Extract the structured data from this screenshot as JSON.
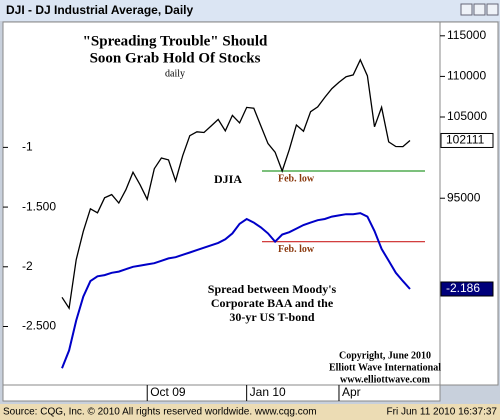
{
  "chart_data": {
    "type": "line",
    "window_title": "DJI - DJ Industrial Average, Daily",
    "categories": [
      null,
      null,
      null,
      null,
      null,
      null,
      null,
      null,
      null,
      null,
      null,
      null,
      "Oct 09",
      null,
      null,
      null,
      null,
      null,
      null,
      null,
      null,
      null,
      null,
      null,
      null,
      null,
      "Jan 10",
      null,
      null,
      null,
      null,
      null,
      null,
      null,
      null,
      null,
      null,
      null,
      null,
      "Apr",
      null,
      null,
      null,
      null,
      null,
      null,
      null,
      null,
      null,
      null
    ],
    "series": [
      {
        "name": "DJIA",
        "color": "#000000",
        "axis": "y",
        "values": [
          82800,
          81460,
          87430,
          90930,
          93700,
          93210,
          95050,
          95440,
          94410,
          96050,
          98200,
          96650,
          94870,
          98640,
          99950,
          99720,
          97130,
          100230,
          102700,
          103180,
          103090,
          103890,
          104710,
          103290,
          105200,
          104280,
          106180,
          106090,
          103890,
          101720,
          100670,
          98350,
          100990,
          104020,
          103250,
          105660,
          106240,
          107420,
          108500,
          109270,
          109970,
          110190,
          112040,
          110080,
          103800,
          106200,
          101930,
          101370,
          101360,
          102111
        ]
      },
      {
        "name": "Spread between Moody's Corporate BAA and the 30-yr US T-bond",
        "color": "#0000c8",
        "axis": "y2",
        "values": [
          -2.85,
          -2.7,
          -2.45,
          -2.25,
          -2.12,
          -2.08,
          -2.07,
          -2.05,
          -2.04,
          -2.02,
          -2.0,
          -1.99,
          -1.98,
          -1.97,
          -1.95,
          -1.93,
          -1.92,
          -1.9,
          -1.88,
          -1.86,
          -1.84,
          -1.82,
          -1.8,
          -1.77,
          -1.72,
          -1.64,
          -1.6,
          -1.63,
          -1.67,
          -1.72,
          -1.79,
          -1.73,
          -1.71,
          -1.68,
          -1.65,
          -1.63,
          -1.61,
          -1.6,
          -1.58,
          -1.57,
          -1.56,
          -1.56,
          -1.55,
          -1.58,
          -1.7,
          -1.85,
          -1.95,
          -2.05,
          -2.12,
          -2.186
        ]
      }
    ],
    "ylim": [
      72000,
      116700
    ],
    "yticks": [
      95000,
      105000,
      110000,
      115000
    ],
    "y2lim": [
      -2.99,
      0.05
    ],
    "y2ticks": [
      -1,
      {
        "value": -1.5,
        "label": "-1.500"
      },
      -2,
      {
        "value": -2.5,
        "label": "-2.500"
      }
    ],
    "levels": [
      {
        "label": "Feb. low",
        "value": 98350,
        "axis": "y",
        "color": "#2e9b2e"
      },
      {
        "label": "Feb. low",
        "value": -1.79,
        "axis": "y2",
        "color": "#cc2222"
      }
    ],
    "annotations": [
      "\"Spreading Trouble\" Should",
      "Soon Grab Hold Of Stocks",
      "daily",
      "DJIA",
      "Spread between Moody's",
      "Corporate BAA and the",
      "30-yr US T-bond",
      "Copyright, June 2010",
      "Elliott Wave International",
      "www.elliottwave.com"
    ],
    "footer_left": "Source: CQG, Inc. © 2010 All rights reserved worldwide. www.cqg.com",
    "footer_right": "Fri Jun 11 2010 16:37:37"
  }
}
